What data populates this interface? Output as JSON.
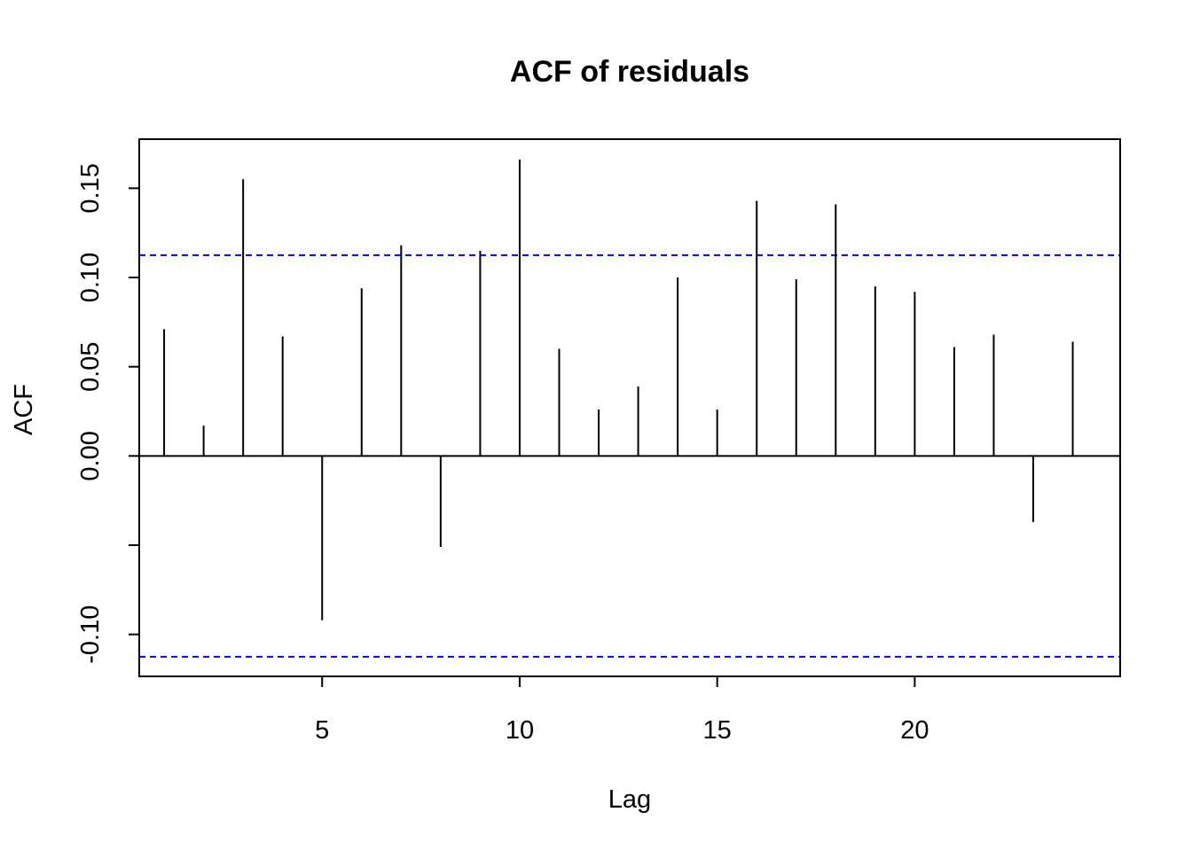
{
  "chart_data": {
    "type": "bar",
    "subtype": "acf-stem",
    "title": "ACF of residuals",
    "xlabel": "Lag",
    "ylabel": "ACF",
    "x": [
      1,
      2,
      3,
      4,
      5,
      6,
      7,
      8,
      9,
      10,
      11,
      12,
      13,
      14,
      15,
      16,
      17,
      18,
      19,
      20,
      21,
      22,
      23,
      24
    ],
    "values": [
      0.071,
      0.017,
      0.155,
      0.067,
      -0.092,
      0.094,
      0.118,
      -0.051,
      0.115,
      0.166,
      0.06,
      0.026,
      0.039,
      0.1,
      0.026,
      0.143,
      0.099,
      0.141,
      0.095,
      0.092,
      0.061,
      0.068,
      -0.037,
      0.064
    ],
    "confidence_bounds": [
      0.1125,
      -0.1125
    ],
    "xlim": [
      0.37,
      25.2
    ],
    "ylim": [
      -0.1235,
      0.1775
    ],
    "x_ticks": [
      5,
      10,
      15,
      20
    ],
    "x_tick_labels": [
      "5",
      "10",
      "15",
      "20"
    ],
    "y_ticks": [
      -0.1,
      -0.05,
      0.0,
      0.05,
      0.1,
      0.15
    ],
    "y_tick_labels": [
      "-0.10",
      "",
      "0.00",
      "0.05",
      "0.10",
      "0.15"
    ],
    "grid": false,
    "colors": {
      "stems": "#000000",
      "confidence_lines": "#0000ff",
      "zero_line": "#000000"
    }
  }
}
